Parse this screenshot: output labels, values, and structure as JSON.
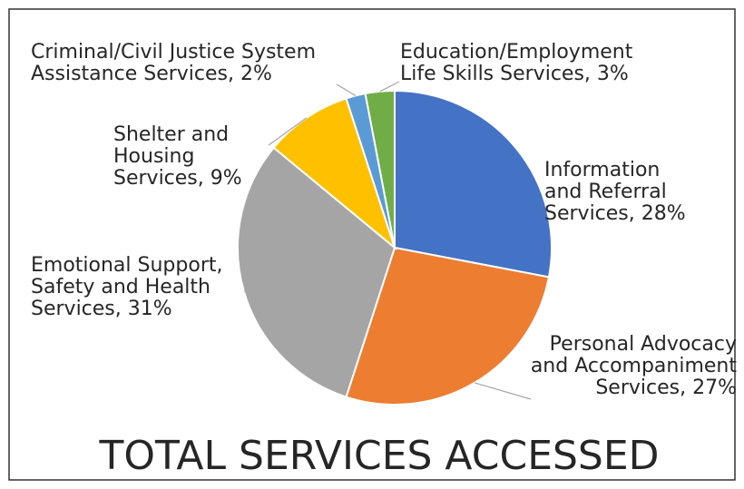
{
  "chart_data": {
    "type": "pie",
    "title": "TOTAL SERVICES ACCESSED",
    "slices": [
      {
        "label": [
          "Information",
          "and Referral",
          "Services, 28%"
        ],
        "value": 28,
        "color": "#4472C4"
      },
      {
        "label": [
          "Personal Advocacy",
          "and Accompaniment",
          "Services, 27%"
        ],
        "value": 27,
        "color": "#ED7D31"
      },
      {
        "label": [
          "Emotional Support,",
          "Safety and Health",
          "Services, 31%"
        ],
        "value": 31,
        "color": "#A5A5A5"
      },
      {
        "label": [
          "Shelter and",
          "Housing",
          "Services, 9%"
        ],
        "value": 9,
        "color": "#FFC000"
      },
      {
        "label": [
          "Criminal/Civil Justice System",
          "Assistance Services, 2%"
        ],
        "value": 2,
        "color": "#5B9BD5"
      },
      {
        "label": [
          "Education/Employment",
          "Life Skills Services, 3%"
        ],
        "value": 3,
        "color": "#70AD47"
      }
    ]
  }
}
